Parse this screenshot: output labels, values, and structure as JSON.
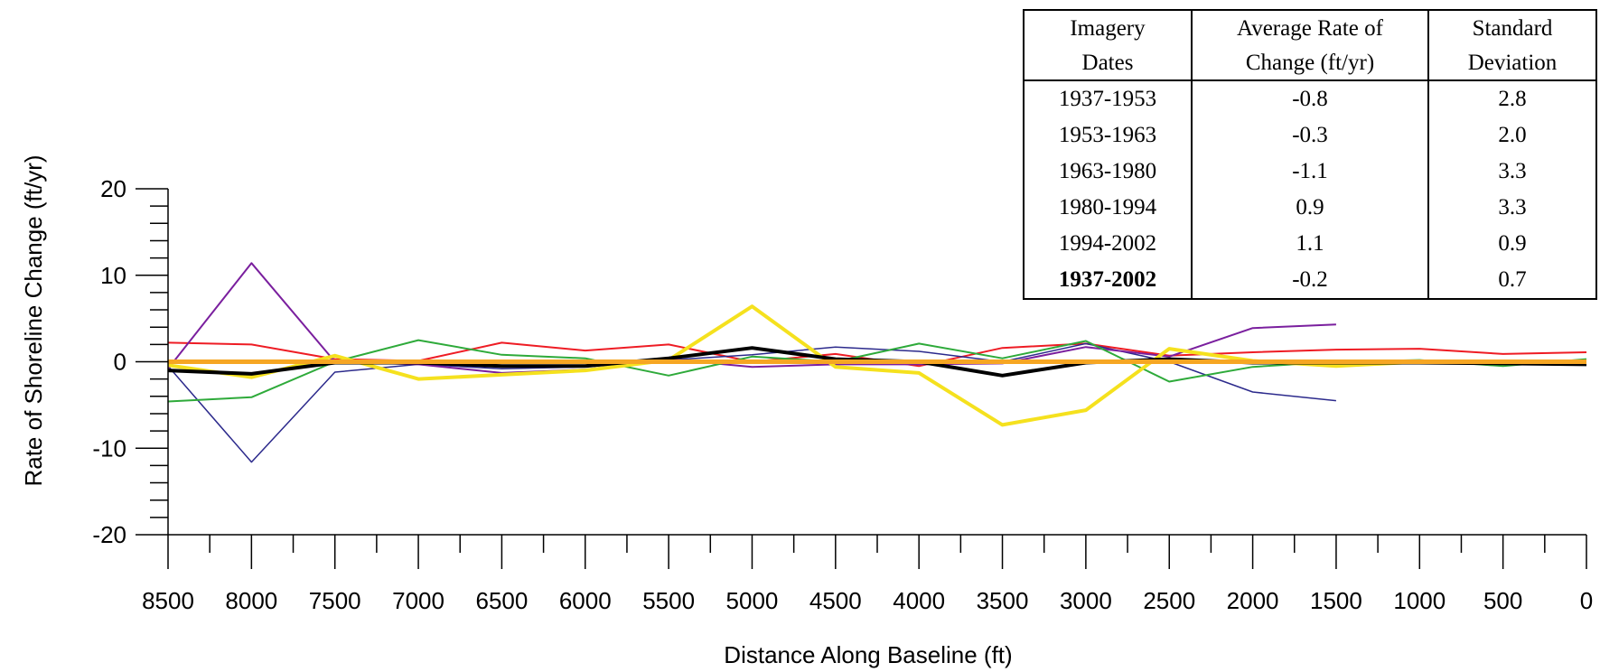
{
  "chart_data": {
    "type": "line",
    "xlabel": "Distance Along Baseline (ft)",
    "ylabel": "Rate of Shoreline Change (ft/yr)",
    "xlim": [
      8500,
      0
    ],
    "ylim": [
      -20,
      20
    ],
    "x_ticks": [
      8500,
      8000,
      7500,
      7000,
      6500,
      6000,
      5500,
      5000,
      4500,
      4000,
      3500,
      3000,
      2500,
      2000,
      1500,
      1000,
      500,
      0
    ],
    "y_ticks": [
      20,
      10,
      0,
      -10,
      -20
    ],
    "series": [
      {
        "color": "#ee1c24",
        "width": 2,
        "x": [
          8500,
          8000,
          7500,
          7000,
          6500,
          6000,
          5500,
          5000,
          4500,
          4000,
          3500,
          3000,
          2500,
          2000,
          1500,
          1000,
          500,
          0
        ],
        "y": [
          2.2,
          2.0,
          0.3,
          0.1,
          2.2,
          1.3,
          2.0,
          0.0,
          0.9,
          -0.5,
          1.6,
          2.1,
          0.7,
          1.1,
          1.4,
          1.5,
          0.9,
          1.1
        ]
      },
      {
        "color": "#2c2a8c",
        "width": 1.5,
        "x": [
          8500,
          8000,
          7500,
          7000,
          6500,
          6000,
          5500,
          5000,
          4500,
          4000,
          3500,
          3000,
          2500,
          2000,
          1500
        ],
        "y": [
          -0.5,
          -11.6,
          -1.2,
          -0.3,
          -0.8,
          -0.6,
          0.2,
          0.8,
          1.7,
          1.2,
          0.0,
          2.1,
          0.0,
          -3.5,
          -4.5
        ]
      },
      {
        "color": "#7a1f9e",
        "width": 2,
        "x": [
          8500,
          8000,
          7500,
          7000,
          6500,
          6000,
          5500,
          5000,
          4500,
          4000,
          3500,
          3000,
          2500,
          2000,
          1500
        ],
        "y": [
          -0.8,
          11.4,
          0.0,
          -0.3,
          -1.3,
          -0.9,
          0.3,
          -0.6,
          -0.3,
          -0.3,
          -0.2,
          1.7,
          0.6,
          3.9,
          4.3
        ]
      },
      {
        "color": "#2eaa3a",
        "width": 2,
        "x": [
          8500,
          8000,
          7500,
          7000,
          6500,
          6000,
          5500,
          5000,
          4500,
          4000,
          3500,
          3000,
          2500,
          2000,
          1500,
          1000,
          500,
          0
        ],
        "y": [
          -4.6,
          -4.1,
          0.0,
          2.5,
          0.8,
          0.4,
          -1.6,
          0.6,
          0.0,
          2.1,
          0.4,
          2.4,
          -2.3,
          -0.6,
          0.0,
          0.2,
          -0.5,
          0.3
        ]
      },
      {
        "color": "#f5e11e",
        "width": 4,
        "x": [
          8500,
          8000,
          7500,
          7000,
          6500,
          6000,
          5500,
          5000,
          4500,
          4000,
          3500,
          3000,
          2500,
          2000,
          1500,
          1000,
          500,
          0
        ],
        "y": [
          -0.4,
          -1.8,
          0.7,
          -2.0,
          -1.5,
          -1.0,
          0.2,
          6.4,
          -0.6,
          -1.3,
          -7.3,
          -5.6,
          1.5,
          0.1,
          -0.5,
          0.0,
          0.0,
          0.0
        ]
      },
      {
        "color": "#000000",
        "width": 4,
        "x": [
          8500,
          8000,
          7500,
          7000,
          6500,
          6000,
          5500,
          5000,
          4500,
          4000,
          3500,
          3000,
          2500,
          2000,
          1500,
          1000,
          500,
          0
        ],
        "y": [
          -1.0,
          -1.4,
          -0.1,
          -0.1,
          -0.5,
          -0.5,
          0.4,
          1.6,
          0.3,
          0.0,
          -1.6,
          -0.1,
          0.3,
          -0.1,
          -0.1,
          -0.1,
          -0.2,
          -0.3
        ]
      },
      {
        "color": "#f6a623",
        "width": 5,
        "x": [
          8500,
          8000,
          7500,
          7000,
          6500,
          6000,
          5500,
          5000,
          4500,
          4000,
          3500,
          3000,
          2500,
          2000,
          1500,
          1000,
          500,
          0
        ],
        "y": [
          0.0,
          0.0,
          0.0,
          0.0,
          0.0,
          0.0,
          0.0,
          0.0,
          0.0,
          0.0,
          0.0,
          0.0,
          0.0,
          0.0,
          0.0,
          0.0,
          0.0,
          0.0
        ]
      }
    ]
  },
  "table": {
    "headers_line1": [
      "Imagery",
      "Average Rate of",
      "Standard"
    ],
    "headers_line2": [
      "Dates",
      "Change (ft/yr)",
      "Deviation"
    ],
    "rows": [
      [
        "1937-1953",
        "-0.8",
        "2.8"
      ],
      [
        "1953-1963",
        "-0.3",
        "2.0"
      ],
      [
        "1963-1980",
        "-1.1",
        "3.3"
      ],
      [
        "1980-1994",
        "0.9",
        "3.3"
      ],
      [
        "1994-2002",
        "1.1",
        "0.9"
      ],
      [
        "1937-2002",
        "-0.2",
        "0.7"
      ]
    ]
  }
}
